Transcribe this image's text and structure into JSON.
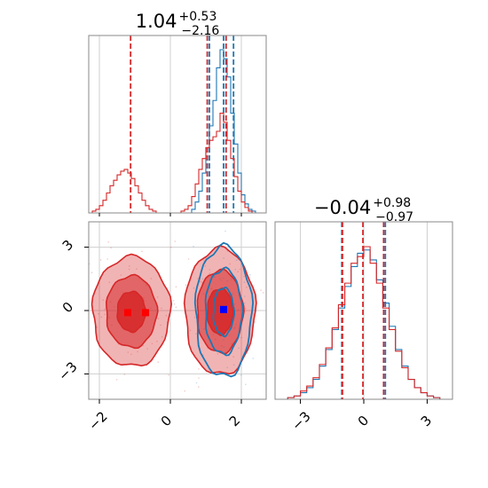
{
  "chart_data": [
    {
      "type": "histogram",
      "panel": "marginal-x",
      "title": {
        "main": "1.04",
        "sup": "+0.53",
        "sub": "−2.16"
      },
      "xlim": [
        -2.3,
        2.7
      ],
      "grid": true,
      "series": [
        {
          "name": "",
          "color": "#1f77b4",
          "bin_edges": [
            0.6,
            0.7,
            0.8,
            0.9,
            1.0,
            1.1,
            1.2,
            1.3,
            1.4,
            1.5,
            1.6,
            1.7,
            1.8,
            1.9,
            2.0,
            2.1,
            2.2,
            2.3,
            2.4
          ],
          "counts": [
            0.02,
            0.06,
            0.12,
            0.22,
            0.36,
            0.48,
            0.62,
            0.8,
            0.9,
            0.85,
            0.75,
            0.55,
            0.38,
            0.22,
            0.1,
            0.05,
            0.02,
            0.01
          ],
          "quantile_lines": [
            1.1,
            1.5,
            1.78
          ]
        },
        {
          "name": "",
          "color": "#d62728",
          "bin_edges": [
            -2.2,
            -2.1,
            -2.0,
            -1.9,
            -1.8,
            -1.7,
            -1.6,
            -1.5,
            -1.4,
            -1.3,
            -1.2,
            -1.1,
            -1.0,
            -0.9,
            -0.8,
            -0.7,
            -0.6,
            -0.5,
            -0.4,
            -0.3,
            -0.2,
            -0.1,
            0.0,
            0.1,
            0.2,
            0.3,
            0.4,
            0.5,
            0.6,
            0.7,
            0.8,
            0.9,
            1.0,
            1.1,
            1.2,
            1.3,
            1.4,
            1.5,
            1.6,
            1.7,
            1.8,
            1.9,
            2.0,
            2.1,
            2.2,
            2.3,
            2.4
          ],
          "counts": [
            0.01,
            0.02,
            0.04,
            0.07,
            0.11,
            0.15,
            0.18,
            0.21,
            0.23,
            0.24,
            0.22,
            0.19,
            0.15,
            0.11,
            0.07,
            0.04,
            0.02,
            0.01,
            0.0,
            0.0,
            0.0,
            0.0,
            0.0,
            0.0,
            0.0,
            0.01,
            0.02,
            0.04,
            0.09,
            0.16,
            0.24,
            0.3,
            0.36,
            0.4,
            0.42,
            0.45,
            0.55,
            0.5,
            0.4,
            0.3,
            0.2,
            0.12,
            0.06,
            0.03,
            0.01,
            0.0
          ],
          "quantile_lines": [
            -1.12,
            1.04,
            1.57
          ]
        }
      ]
    },
    {
      "type": "contour",
      "panel": "joint",
      "xlim": [
        -2.3,
        2.7
      ],
      "ylim": [
        -4.2,
        4.2
      ],
      "xticks": [
        "−2",
        "0",
        "2"
      ],
      "yticks": [
        "−3",
        "0",
        "3"
      ],
      "grid": true,
      "series": [
        {
          "name": "",
          "color": "#d62728",
          "levels": [
            0.39,
            0.86,
            0.99
          ],
          "modes": [
            {
              "mean": [
                -1.1,
                -0.05
              ],
              "sigma": [
                0.42,
                1.0
              ],
              "weight": 0.55
            },
            {
              "mean": [
                1.4,
                -0.05
              ],
              "sigma": [
                0.38,
                1.15
              ],
              "weight": 1.0
            }
          ],
          "mean_marker": [
            [
              -1.2,
              -0.1
            ],
            [
              -0.7,
              -0.1
            ]
          ]
        },
        {
          "name": "",
          "color": "#1f77b4",
          "levels": [
            0.39,
            0.86,
            0.99
          ],
          "modes": [
            {
              "mean": [
                1.5,
                -0.05
              ],
              "sigma": [
                0.32,
                1.25
              ],
              "weight": 1.0
            }
          ],
          "mean_marker": [
            [
              1.5,
              0.05
            ]
          ]
        }
      ]
    },
    {
      "type": "histogram",
      "panel": "marginal-y",
      "title": {
        "main": "−0.04",
        "sup": "+0.98",
        "sub": "−0.97"
      },
      "xlim": [
        -4.2,
        4.2
      ],
      "xticks": [
        "−3",
        "0",
        "3"
      ],
      "grid": true,
      "series": [
        {
          "name": "",
          "color": "#1f77b4",
          "bin_edges": [
            -3.6,
            -3.3,
            -3.0,
            -2.7,
            -2.4,
            -2.1,
            -1.8,
            -1.5,
            -1.2,
            -0.9,
            -0.6,
            -0.3,
            0.0,
            0.3,
            0.6,
            0.9,
            1.2,
            1.5,
            1.8,
            2.1,
            2.4,
            2.7,
            3.0,
            3.3,
            3.6
          ],
          "counts": [
            0.01,
            0.02,
            0.04,
            0.07,
            0.12,
            0.2,
            0.3,
            0.42,
            0.55,
            0.68,
            0.8,
            0.88,
            0.9,
            0.84,
            0.72,
            0.58,
            0.44,
            0.3,
            0.2,
            0.12,
            0.07,
            0.04,
            0.02,
            0.01
          ],
          "quantile_lines": [
            -1.04,
            1.02
          ]
        },
        {
          "name": "",
          "color": "#d62728",
          "bin_edges": [
            -3.6,
            -3.3,
            -3.0,
            -2.7,
            -2.4,
            -2.1,
            -1.8,
            -1.5,
            -1.2,
            -0.9,
            -0.6,
            -0.3,
            0.0,
            0.3,
            0.6,
            0.9,
            1.2,
            1.5,
            1.8,
            2.1,
            2.4,
            2.7,
            3.0,
            3.3,
            3.6
          ],
          "counts": [
            0.01,
            0.02,
            0.05,
            0.08,
            0.13,
            0.21,
            0.31,
            0.43,
            0.57,
            0.7,
            0.82,
            0.86,
            0.92,
            0.82,
            0.7,
            0.55,
            0.42,
            0.29,
            0.19,
            0.12,
            0.07,
            0.04,
            0.02,
            0.01
          ],
          "quantile_lines": [
            -1.01,
            0.94,
            -0.04
          ]
        }
      ]
    }
  ]
}
